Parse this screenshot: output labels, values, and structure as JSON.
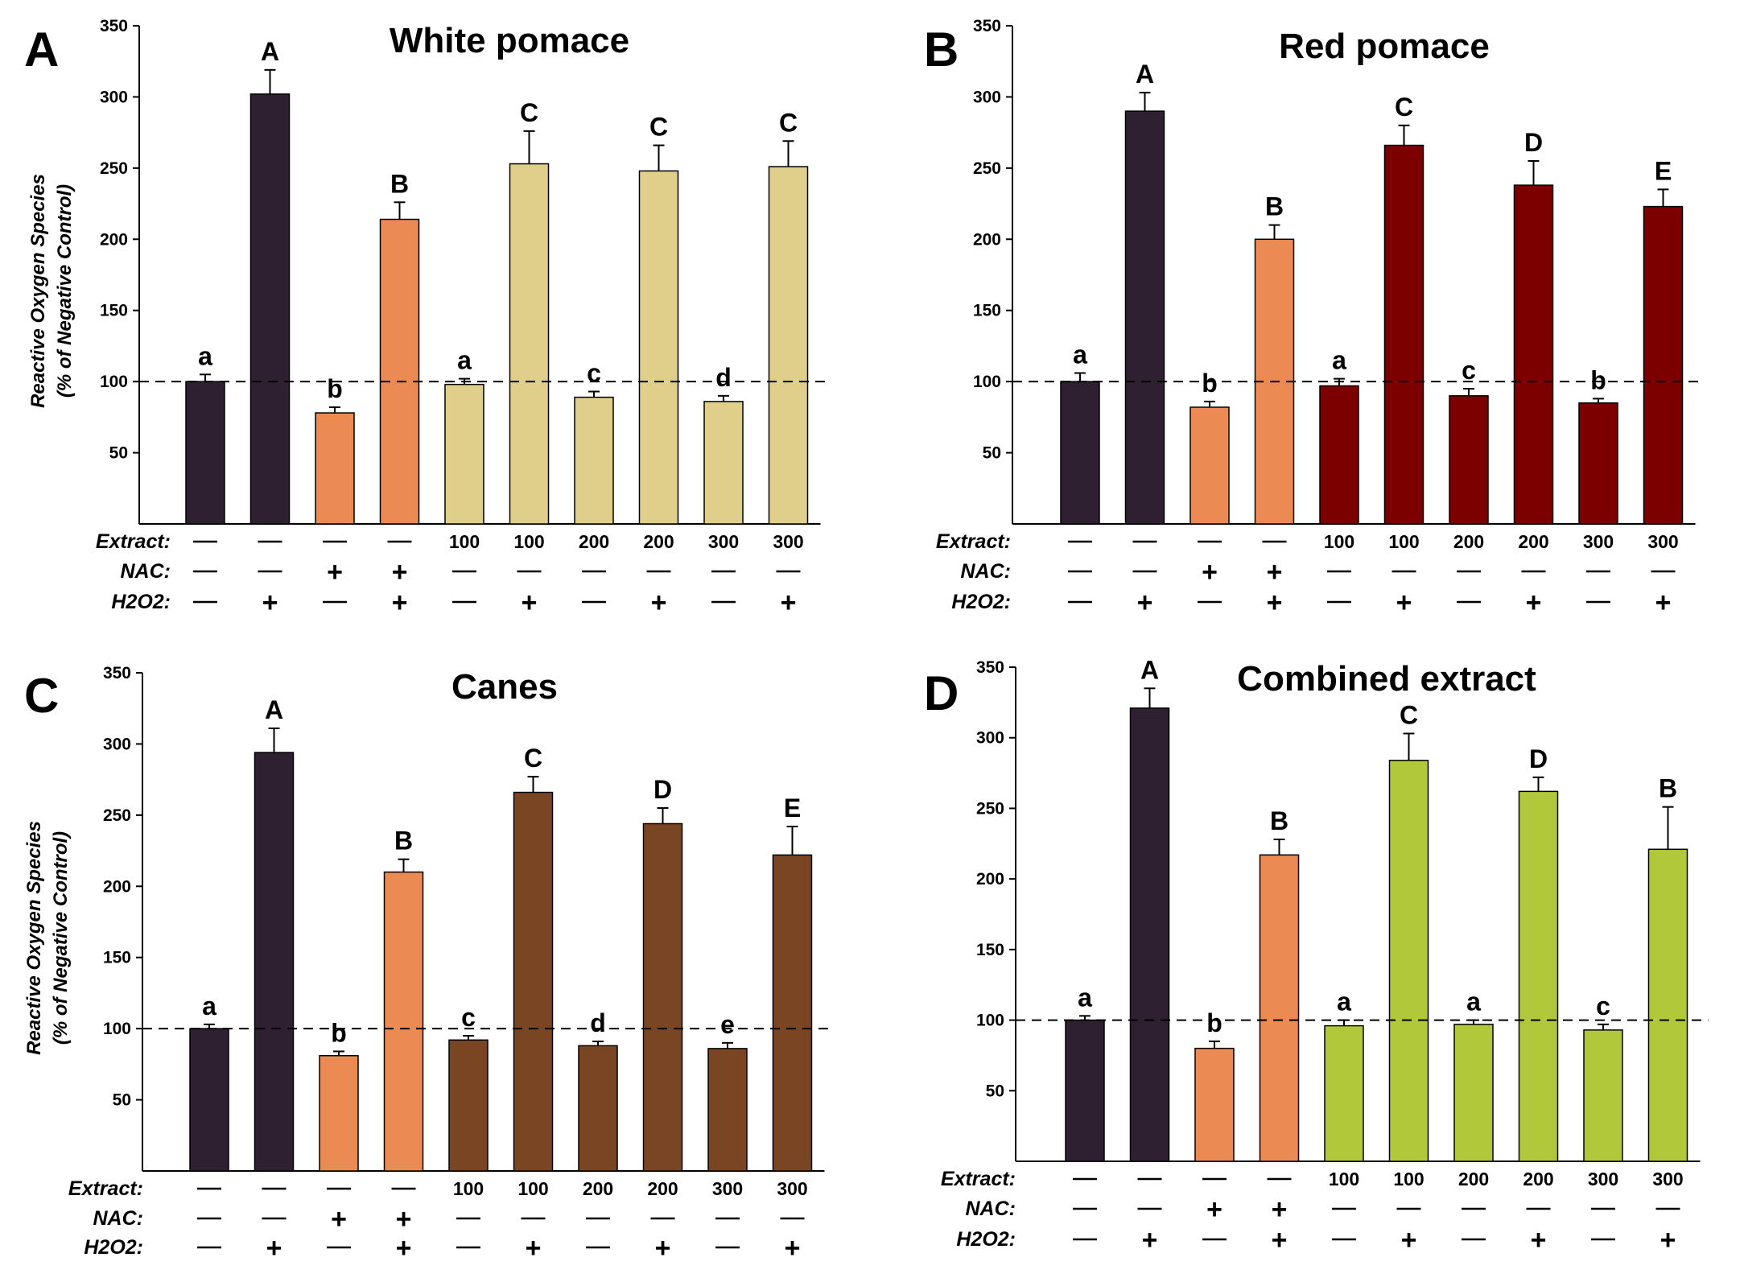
{
  "chart_data": [
    {
      "type": "bar",
      "panel": "A",
      "title": "White pomace",
      "ylabel": "Reactive Oxygen Species",
      "ylabel_sub": "(% of Negative Control)",
      "ylim": [
        0,
        350
      ],
      "yticks": [
        50,
        100,
        150,
        200,
        250,
        300,
        350
      ],
      "reference_line": 100,
      "values": [
        100,
        302,
        78,
        214,
        98,
        253,
        89,
        248,
        86,
        251
      ],
      "errors": [
        5,
        17,
        4,
        12,
        4,
        23,
        4,
        18,
        4,
        18
      ],
      "letters": [
        "a",
        "A",
        "b",
        "B",
        "a",
        "C",
        "c",
        "C",
        "d",
        "C"
      ],
      "bar_colors": [
        "#2e2030",
        "#2e2030",
        "#eb8a52",
        "#eb8a52",
        "#e0cf8a",
        "#e0cf8a",
        "#e0cf8a",
        "#e0cf8a",
        "#e0cf8a",
        "#e0cf8a"
      ],
      "conditions": {
        "extract_label": "Extract:",
        "nac_label": "NAC:",
        "h2o2_label": "H2O2:",
        "extract": [
          "—",
          "—",
          "—",
          "—",
          "100",
          "100",
          "200",
          "200",
          "300",
          "300"
        ],
        "nac": [
          "—",
          "—",
          "+",
          "+",
          "—",
          "—",
          "—",
          "—",
          "—",
          "—"
        ],
        "h2o2": [
          "—",
          "+",
          "—",
          "+",
          "—",
          "+",
          "—",
          "+",
          "—",
          "+"
        ]
      }
    },
    {
      "type": "bar",
      "panel": "B",
      "title": "Red pomace",
      "ylabel": "",
      "ylabel_sub": "",
      "ylim": [
        0,
        350
      ],
      "yticks": [
        50,
        100,
        150,
        200,
        250,
        300,
        350
      ],
      "reference_line": 100,
      "values": [
        100,
        290,
        82,
        200,
        97,
        266,
        90,
        238,
        85,
        223
      ],
      "errors": [
        6,
        13,
        4,
        10,
        5,
        14,
        5,
        17,
        3,
        12
      ],
      "letters": [
        "a",
        "A",
        "b",
        "B",
        "a",
        "C",
        "c",
        "D",
        "b",
        "E"
      ],
      "bar_colors": [
        "#2e2030",
        "#2e2030",
        "#eb8a52",
        "#eb8a52",
        "#7d0000",
        "#7d0000",
        "#7d0000",
        "#7d0000",
        "#7d0000",
        "#7d0000"
      ],
      "conditions": {
        "extract_label": "Extract:",
        "nac_label": "NAC:",
        "h2o2_label": "H2O2:",
        "extract": [
          "—",
          "—",
          "—",
          "—",
          "100",
          "100",
          "200",
          "200",
          "300",
          "300"
        ],
        "nac": [
          "—",
          "—",
          "+",
          "+",
          "—",
          "—",
          "—",
          "—",
          "—",
          "—"
        ],
        "h2o2": [
          "—",
          "+",
          "—",
          "+",
          "—",
          "+",
          "—",
          "+",
          "—",
          "+"
        ]
      }
    },
    {
      "type": "bar",
      "panel": "C",
      "title": "Canes",
      "ylabel": "Reactive Oxygen Species",
      "ylabel_sub": "(% of Negative Control)",
      "ylim": [
        0,
        350
      ],
      "yticks": [
        50,
        100,
        150,
        200,
        250,
        300,
        350
      ],
      "reference_line": 100,
      "values": [
        100,
        294,
        81,
        210,
        92,
        266,
        88,
        244,
        86,
        222
      ],
      "errors": [
        3,
        17,
        3,
        9,
        3,
        11,
        3,
        11,
        4,
        20
      ],
      "letters": [
        "a",
        "A",
        "b",
        "B",
        "c",
        "C",
        "d",
        "D",
        "e",
        "E"
      ],
      "bar_colors": [
        "#2e2030",
        "#2e2030",
        "#eb8a52",
        "#eb8a52",
        "#7a4523",
        "#7a4523",
        "#7a4523",
        "#7a4523",
        "#7a4523",
        "#7a4523"
      ],
      "conditions": {
        "extract_label": "Extract:",
        "nac_label": "NAC:",
        "h2o2_label": "H2O2:",
        "extract": [
          "—",
          "—",
          "—",
          "—",
          "100",
          "100",
          "200",
          "200",
          "300",
          "300"
        ],
        "nac": [
          "—",
          "—",
          "+",
          "+",
          "—",
          "—",
          "—",
          "—",
          "—",
          "—"
        ],
        "h2o2": [
          "—",
          "+",
          "—",
          "+",
          "—",
          "+",
          "—",
          "+",
          "—",
          "+"
        ]
      }
    },
    {
      "type": "bar",
      "panel": "D",
      "title": "Combined extract",
      "ylabel": "",
      "ylabel_sub": "",
      "ylim": [
        0,
        350
      ],
      "yticks": [
        50,
        100,
        150,
        200,
        250,
        300,
        350
      ],
      "reference_line": 100,
      "values": [
        100,
        321,
        80,
        217,
        96,
        284,
        97,
        262,
        93,
        221
      ],
      "errors": [
        3,
        14,
        5,
        11,
        4,
        19,
        3,
        10,
        4,
        30
      ],
      "letters": [
        "a",
        "A",
        "b",
        "B",
        "a",
        "C",
        "a",
        "D",
        "c",
        "B"
      ],
      "bar_colors": [
        "#2e2030",
        "#2e2030",
        "#eb8a52",
        "#eb8a52",
        "#b0c83a",
        "#b0c83a",
        "#b0c83a",
        "#b0c83a",
        "#b0c83a",
        "#b0c83a"
      ],
      "conditions": {
        "extract_label": "Extract:",
        "nac_label": "NAC:",
        "h2o2_label": "H2O2:",
        "extract": [
          "—",
          "—",
          "—",
          "—",
          "100",
          "100",
          "200",
          "200",
          "300",
          "300"
        ],
        "nac": [
          "—",
          "—",
          "+",
          "+",
          "—",
          "—",
          "—",
          "—",
          "—",
          "—"
        ],
        "h2o2": [
          "—",
          "+",
          "—",
          "+",
          "—",
          "+",
          "—",
          "+",
          "—",
          "+"
        ]
      }
    }
  ]
}
